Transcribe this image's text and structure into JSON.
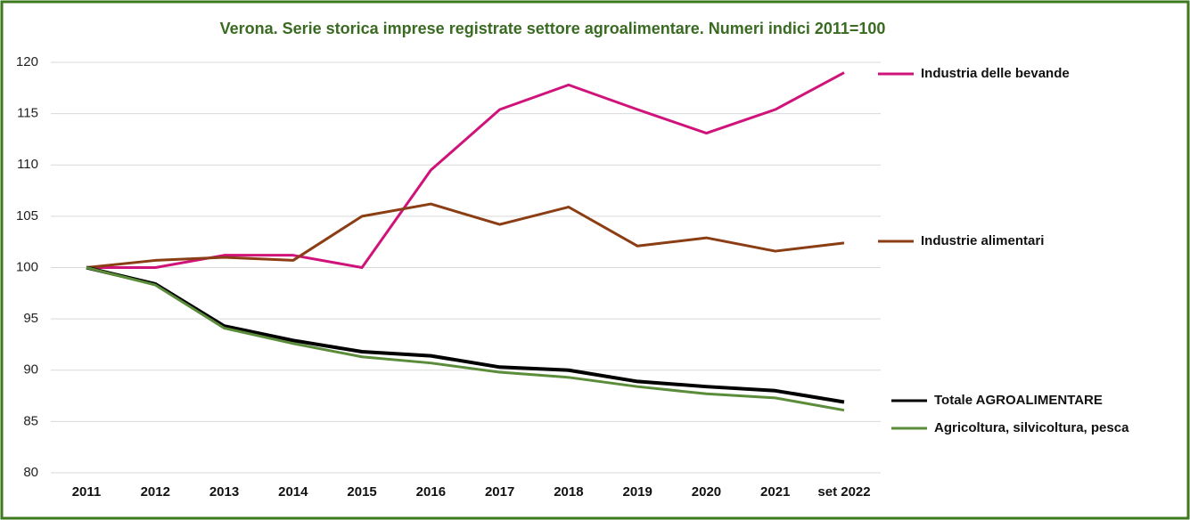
{
  "chart_data": {
    "type": "line",
    "title": "Verona. Serie storica  imprese registrate settore agroalimentare. Numeri indici 2011=100",
    "categories": [
      "2011",
      "2012",
      "2013",
      "2014",
      "2015",
      "2016",
      "2017",
      "2018",
      "2019",
      "2020",
      "2021",
      "set 2022"
    ],
    "series": [
      {
        "name": "Industria delle bevande",
        "color": "#d0137a",
        "values": [
          100,
          100,
          101.2,
          101.2,
          100,
          109.5,
          115.4,
          117.8,
          115.4,
          113.1,
          115.4,
          119
        ]
      },
      {
        "name": "Industrie alimentari",
        "color": "#8b3d14",
        "values": [
          100,
          100.7,
          101,
          100.7,
          105,
          106.2,
          104.2,
          105.9,
          102.1,
          102.9,
          101.6,
          102.4
        ]
      },
      {
        "name": "Totale AGROALIMENTARE",
        "color": "#000000",
        "values": [
          100,
          98.4,
          94.3,
          92.9,
          91.8,
          91.4,
          90.3,
          90.0,
          88.9,
          88.4,
          88.0,
          86.9
        ]
      },
      {
        "name": "Agricoltura, silvicoltura, pesca",
        "color": "#5b8c3a",
        "values": [
          100,
          98.3,
          94.1,
          92.6,
          91.3,
          90.7,
          89.8,
          89.3,
          88.4,
          87.7,
          87.3,
          86.1
        ]
      }
    ],
    "ylim": [
      80,
      120
    ],
    "yticks": [
      80,
      85,
      90,
      95,
      100,
      105,
      110,
      115,
      120
    ],
    "grid": true
  }
}
